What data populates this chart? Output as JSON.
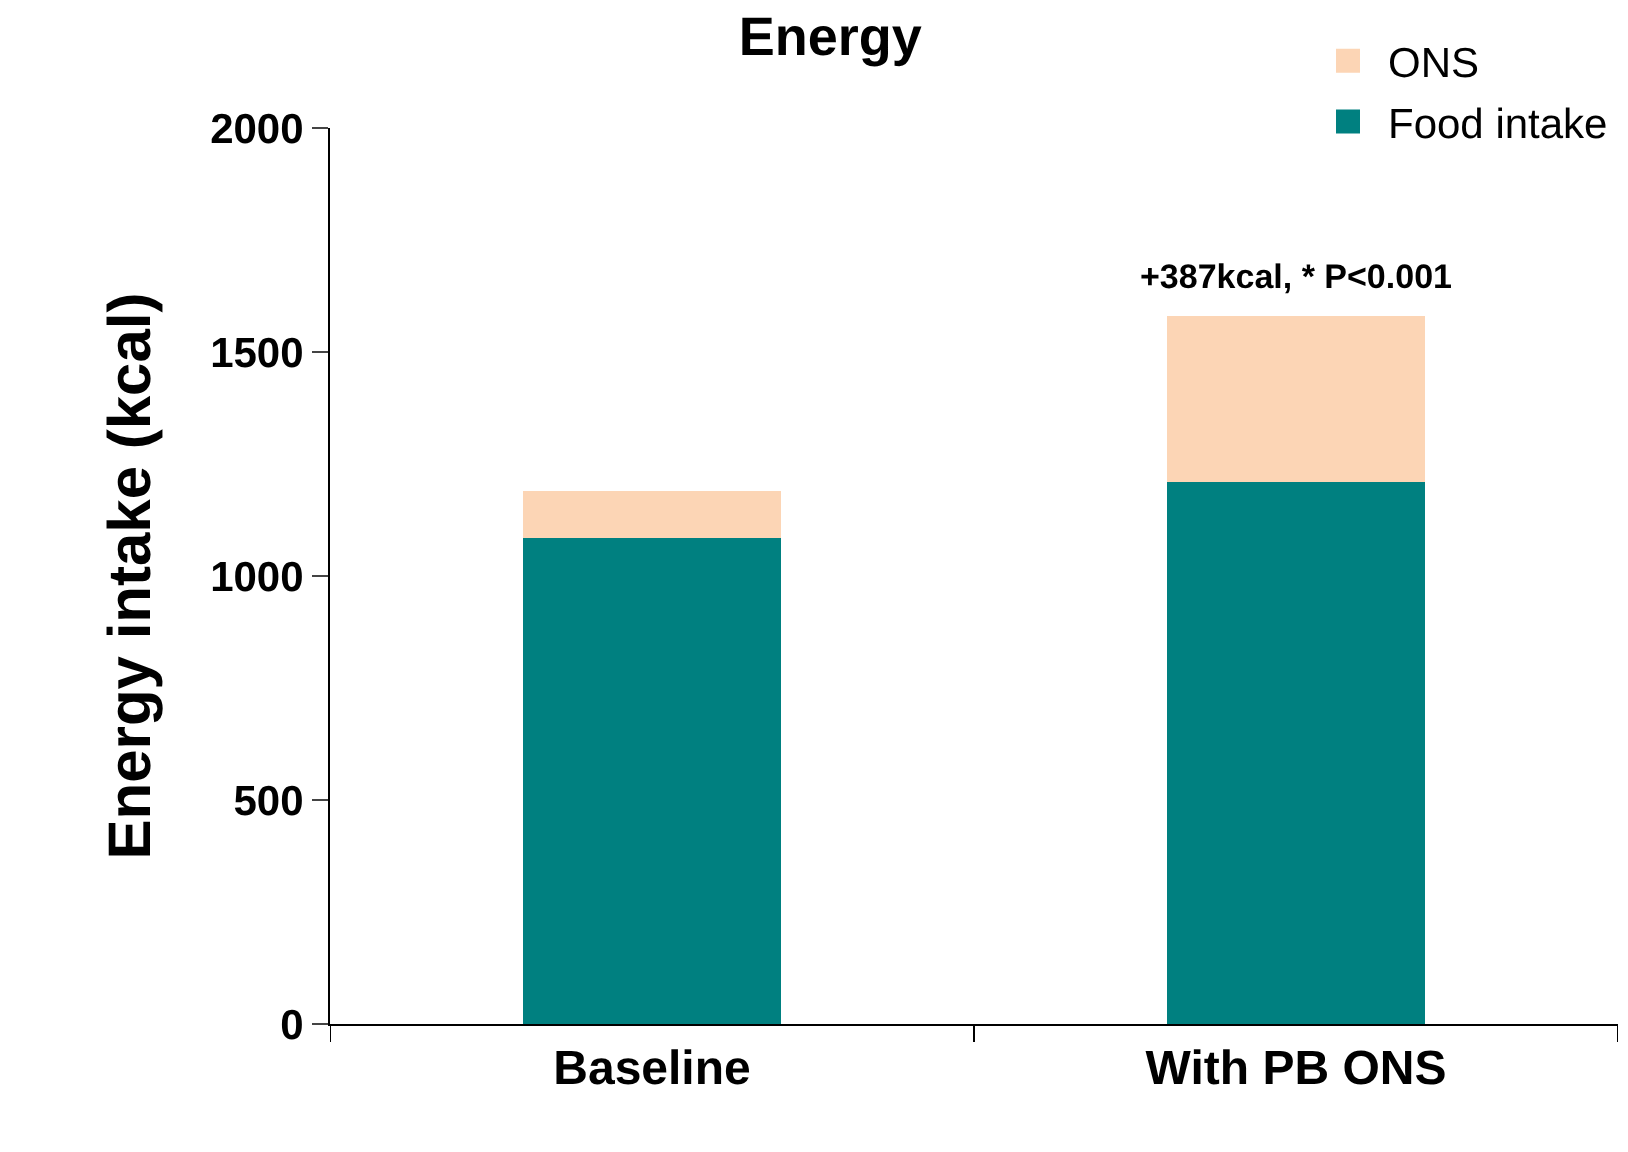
{
  "chart_data": {
    "type": "bar",
    "title": "Energy",
    "ylabel": "Energy intake (kcal)",
    "categories": [
      "Baseline",
      "With PB ONS"
    ],
    "stacked": true,
    "series": [
      {
        "name": "Food intake",
        "color": "#008080",
        "values": [
          1085,
          1210
        ]
      },
      {
        "name": "ONS",
        "color": "#fcd5b5",
        "values": [
          105,
          370
        ]
      }
    ],
    "ylim": [
      0,
      2000
    ],
    "yticks": [
      0,
      500,
      1000,
      1500,
      2000
    ],
    "grid": false,
    "legend": "top right",
    "annotations": [
      {
        "text": "+387kcal, * P<0.001",
        "x": "With PB ONS",
        "y": 1580
      }
    ]
  }
}
